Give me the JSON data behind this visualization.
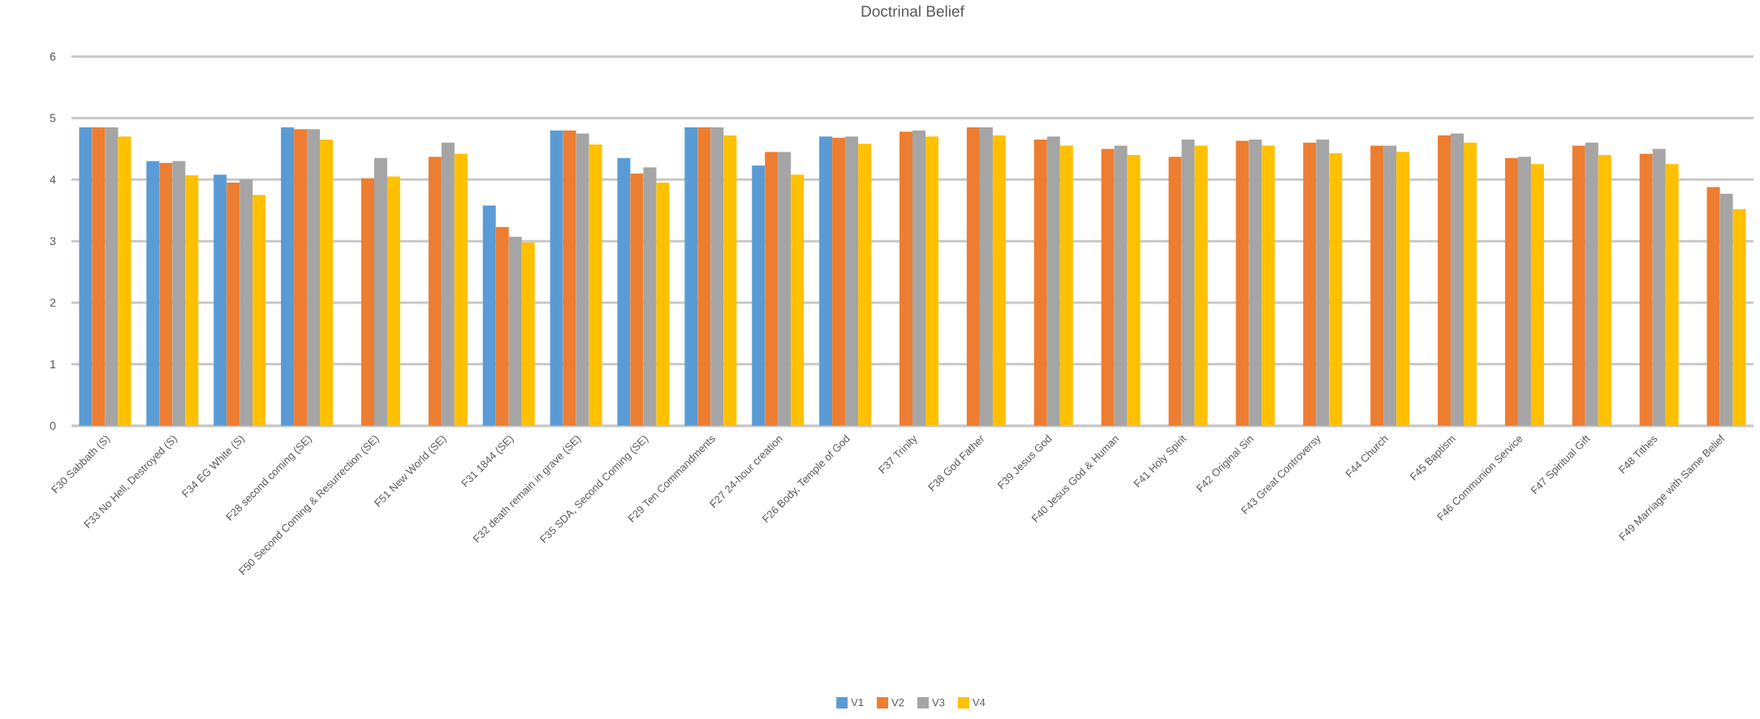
{
  "chart_data": {
    "type": "bar",
    "title": "Doctrinal Belief",
    "categories": [
      "F30 Sabbath (S)",
      "F33 No Hell, Destroyed (S)",
      "F34 EG White (S)",
      "F28 second coming (SE)",
      "F50 Second Coming & Resurrection (SE)",
      "F51 New World (SE)",
      "F31 1844 (SE)",
      "F32 death remain in grave (SE)",
      "F35 SDA, Second Coming (SE)",
      "F29 Ten Commandments",
      "F27 24-hour creation",
      "F26 Body, Temple of God",
      "F37 Trinity",
      "F38 God Father",
      "F39 Jesus God",
      "F40 Jesus God & Human",
      "F41 Holy Spirit",
      "F42 Original Sin",
      "F43 Great Controversy",
      "F44 Church",
      "F45 Baptism",
      "F46 Communion Service",
      "F47 Spiritual Gift",
      "F48 Tithes",
      "F49 Marriage with Same Belief"
    ],
    "series": [
      {
        "name": "V1",
        "color": "#5b9bd5",
        "values": [
          4.85,
          4.3,
          4.08,
          4.85,
          null,
          null,
          3.58,
          4.8,
          4.35,
          4.85,
          4.23,
          4.7,
          null,
          null,
          null,
          null,
          null,
          null,
          null,
          null,
          null,
          null,
          null,
          null,
          null
        ]
      },
      {
        "name": "V2",
        "color": "#ed7d31",
        "values": [
          4.85,
          4.27,
          3.95,
          4.82,
          4.02,
          4.37,
          3.23,
          4.8,
          4.1,
          4.85,
          4.45,
          4.68,
          4.78,
          4.85,
          4.65,
          4.5,
          4.37,
          4.63,
          4.6,
          4.55,
          4.72,
          4.35,
          4.55,
          4.42,
          3.88
        ]
      },
      {
        "name": "V3",
        "color": "#a5a5a5",
        "values": [
          4.85,
          4.3,
          4.0,
          4.82,
          4.35,
          4.6,
          3.07,
          4.75,
          4.2,
          4.85,
          4.45,
          4.7,
          4.8,
          4.85,
          4.7,
          4.55,
          4.65,
          4.65,
          4.65,
          4.55,
          4.75,
          4.37,
          4.6,
          4.5,
          3.77
        ]
      },
      {
        "name": "V4",
        "color": "#ffc000",
        "values": [
          4.7,
          4.07,
          3.75,
          4.65,
          4.05,
          4.42,
          2.98,
          4.57,
          3.95,
          4.72,
          4.08,
          4.58,
          4.7,
          4.72,
          4.55,
          4.4,
          4.55,
          4.55,
          4.43,
          4.45,
          4.6,
          4.25,
          4.4,
          4.25,
          3.52
        ]
      }
    ],
    "ylim": [
      0,
      6
    ],
    "yticks": [
      0,
      1,
      2,
      3,
      4,
      5,
      6
    ],
    "grid": "y",
    "legend": "bottom"
  }
}
